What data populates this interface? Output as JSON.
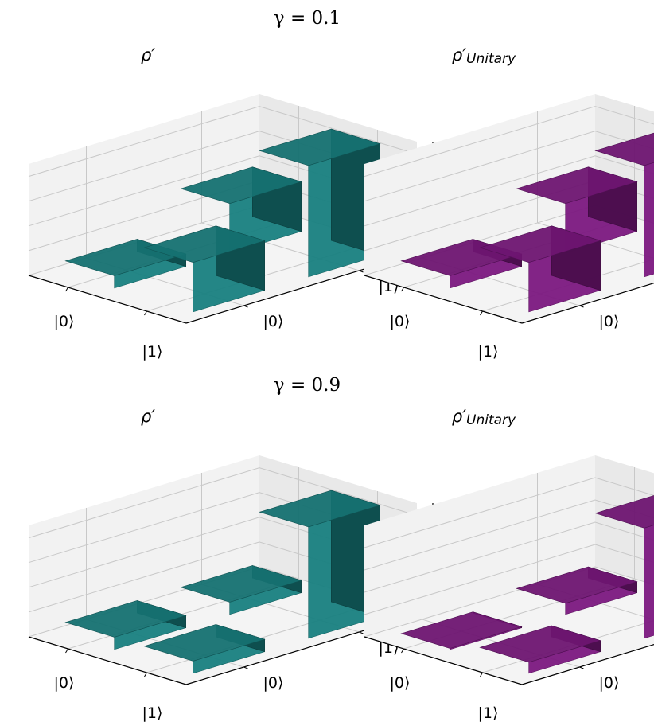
{
  "figure": {
    "rows": [
      {
        "title_prefix": "γ = ",
        "title_value": "0.1",
        "left_title": "ρ′",
        "right_title": "ρ′",
        "right_sub": "Unitary"
      },
      {
        "title_prefix": "γ = ",
        "title_value": "0.9",
        "left_title": "ρ′",
        "right_title": "ρ′",
        "right_sub": "Unitary"
      }
    ],
    "colors": {
      "left": "#1a8a8a",
      "right": "#861a8a"
    }
  },
  "chart_data": [
    {
      "type": "bar3d",
      "row_labels": [
        "|0⟩",
        "|1⟩"
      ],
      "col_labels": [
        "|0⟩",
        "|1⟩"
      ],
      "values": [
        [
          0.1,
          0.4
        ],
        [
          0.4,
          0.9
        ]
      ],
      "zticks": [
        "0.0",
        "0.2",
        "0.4",
        "0.6",
        "0.8"
      ],
      "zlim": [
        0,
        0.9
      ]
    },
    {
      "type": "bar3d",
      "row_labels": [
        "|0⟩",
        "|1⟩"
      ],
      "col_labels": [
        "|0⟩",
        "|1⟩"
      ],
      "values": [
        [
          0.1,
          0.4
        ],
        [
          0.4,
          0.9
        ]
      ],
      "zticks": [
        "0.0",
        "0.2",
        "0.4",
        "0.6",
        "0.8"
      ],
      "zlim": [
        0,
        0.9
      ]
    },
    {
      "type": "bar3d",
      "row_labels": [
        "|0⟩",
        "|1⟩"
      ],
      "col_labels": [
        "|0⟩",
        "|1⟩"
      ],
      "values": [
        [
          0.1,
          0.1
        ],
        [
          0.1,
          0.9
        ]
      ],
      "zticks": [
        "0.0",
        "0.2",
        "0.4",
        "0.6",
        "0.8"
      ],
      "zlim": [
        0,
        0.9
      ]
    },
    {
      "type": "bar3d",
      "row_labels": [
        "|0⟩",
        "|1⟩"
      ],
      "col_labels": [
        "|0⟩",
        "|1⟩"
      ],
      "values": [
        [
          0.01,
          0.1
        ],
        [
          0.1,
          0.99
        ]
      ],
      "zticks": [
        "0.0",
        "0.2",
        "0.4",
        "0.6",
        "0.8"
      ],
      "zlim": [
        0,
        1.0
      ]
    }
  ]
}
